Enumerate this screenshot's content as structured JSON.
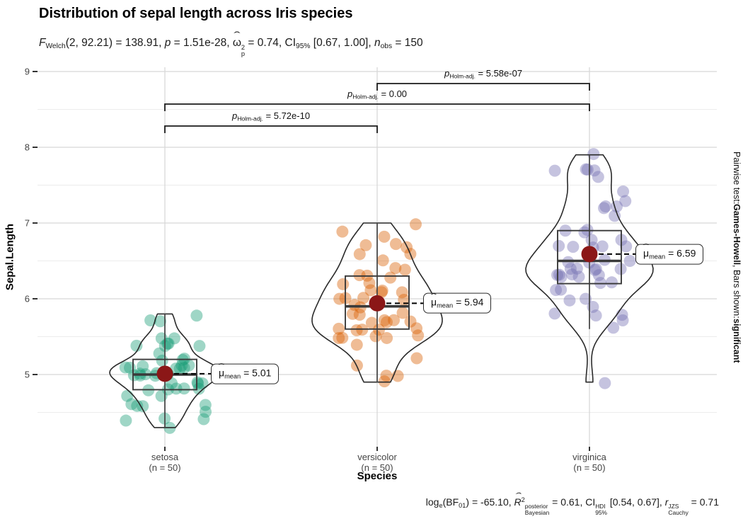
{
  "chart_data": {
    "type": "violin-box-scatter",
    "title": "Distribution of sepal length across Iris species",
    "subtitle_tokens": [
      [
        "i",
        "F"
      ],
      [
        "sub",
        "Welch"
      ],
      [
        "t",
        "(2, 92.21) = 138.91, "
      ],
      [
        "i",
        "p"
      ],
      [
        "t",
        " = 1.51e-28, "
      ],
      [
        "hat",
        "ω"
      ],
      [
        "ss",
        "2",
        "p"
      ],
      [
        "t",
        " = 0.74, CI"
      ],
      [
        "sub",
        "95%"
      ],
      [
        "t",
        " [0.67, 1.00], "
      ],
      [
        "i",
        "n"
      ],
      [
        "sub",
        "obs"
      ],
      [
        "t",
        " = 150"
      ]
    ],
    "caption_tokens": [
      [
        "t",
        "log"
      ],
      [
        "sub",
        "e"
      ],
      [
        "t",
        "(BF"
      ],
      [
        "sub",
        "01"
      ],
      [
        "t",
        ") = -65.10, "
      ],
      [
        "hati",
        "R"
      ],
      [
        "sup",
        "2"
      ],
      [
        "ss",
        "posterior",
        "Bayesian"
      ],
      [
        "t",
        " = 0.61, CI"
      ],
      [
        "ss",
        "HDI",
        "95%"
      ],
      [
        "t",
        " [0.54, 0.67], "
      ],
      [
        "i",
        "r"
      ],
      [
        "ss",
        "JZS",
        "Cauchy"
      ],
      [
        "t",
        " = 0.71"
      ]
    ],
    "right_note_tokens": [
      [
        "t",
        "Pairwise test: "
      ],
      [
        "b",
        "Games-Howell"
      ],
      [
        "t",
        ", Bars shown: "
      ],
      [
        "b",
        "significant"
      ]
    ],
    "xlabel": "Species",
    "ylabel": "Sepal.Length",
    "y_major_ticks": [
      9,
      8,
      7,
      6,
      5
    ],
    "y_minor_ticks": [
      8.5,
      7.5,
      6.5,
      5.5,
      4.5
    ],
    "ylim": [
      4.05,
      9.07
    ],
    "grid": true,
    "legend_position": "none",
    "mean_point_color": "#8B1717",
    "groups": [
      {
        "name": "setosa",
        "axis_label": "setosa",
        "n_label": "(n = 50)",
        "color": "#1B9E77",
        "mean": 5.01,
        "mean_label_tokens": [
          [
            "hat",
            "μ"
          ],
          [
            "sub",
            "mean"
          ],
          [
            "t",
            " = 5.01"
          ]
        ],
        "box": {
          "q1": 4.8,
          "median": 5.0,
          "q3": 5.2,
          "whisker_low": 4.3,
          "whisker_high": 5.8
        },
        "values": [
          5.1,
          4.9,
          4.7,
          4.6,
          5.0,
          5.4,
          4.6,
          5.0,
          4.4,
          4.9,
          5.4,
          4.8,
          4.8,
          4.3,
          5.8,
          5.7,
          5.4,
          5.1,
          5.7,
          5.1,
          5.4,
          5.1,
          4.6,
          5.1,
          4.8,
          5.0,
          5.0,
          5.2,
          5.2,
          4.7,
          4.8,
          5.4,
          5.2,
          5.5,
          4.9,
          5.0,
          5.5,
          4.9,
          4.4,
          5.1,
          5.0,
          4.5,
          4.4,
          5.0,
          5.1,
          4.8,
          5.1,
          4.6,
          5.3,
          5.0
        ]
      },
      {
        "name": "versicolor",
        "axis_label": "versicolor",
        "n_label": "(n = 50)",
        "color": "#D95F02",
        "mean": 5.94,
        "mean_label_tokens": [
          [
            "hat",
            "μ"
          ],
          [
            "sub",
            "mean"
          ],
          [
            "t",
            " = 5.94"
          ]
        ],
        "box": {
          "q1": 5.6,
          "median": 5.9,
          "q3": 6.3,
          "whisker_low": 4.9,
          "whisker_high": 7.0
        },
        "values": [
          7.0,
          6.4,
          6.9,
          5.5,
          6.5,
          5.7,
          6.3,
          4.9,
          6.6,
          5.2,
          5.0,
          5.9,
          6.0,
          6.1,
          5.6,
          6.7,
          5.6,
          5.8,
          6.2,
          5.6,
          5.9,
          6.1,
          6.3,
          6.1,
          6.4,
          6.6,
          6.8,
          6.7,
          6.0,
          5.7,
          5.5,
          5.5,
          5.8,
          6.0,
          5.4,
          6.0,
          6.7,
          6.3,
          5.6,
          5.5,
          5.5,
          6.1,
          5.8,
          5.0,
          5.6,
          5.7,
          5.7,
          6.2,
          5.1,
          5.7
        ]
      },
      {
        "name": "virginica",
        "axis_label": "virginica",
        "n_label": "(n = 50)",
        "color": "#7570B3",
        "mean": 6.59,
        "mean_label_tokens": [
          [
            "hat",
            "μ"
          ],
          [
            "sub",
            "mean"
          ],
          [
            "t",
            " = 6.59"
          ]
        ],
        "box": {
          "q1": 6.2,
          "median": 6.5,
          "q3": 6.9,
          "whisker_low": 5.6,
          "whisker_high": 7.9
        },
        "values": [
          6.3,
          5.8,
          7.1,
          6.3,
          6.5,
          7.6,
          4.9,
          7.3,
          6.7,
          7.2,
          6.5,
          6.4,
          6.8,
          5.7,
          5.8,
          6.4,
          6.5,
          7.7,
          7.7,
          6.0,
          6.9,
          5.6,
          7.7,
          6.3,
          6.7,
          7.2,
          6.2,
          6.1,
          6.4,
          7.2,
          7.4,
          7.9,
          6.4,
          6.3,
          6.1,
          7.7,
          6.3,
          6.4,
          6.0,
          6.9,
          6.7,
          6.9,
          5.8,
          6.8,
          6.7,
          6.7,
          6.3,
          6.5,
          6.2,
          5.9
        ]
      }
    ],
    "comparisons": [
      {
        "group1": "setosa",
        "group2": "versicolor",
        "level": 3,
        "label_tokens": [
          [
            "i",
            "p"
          ],
          [
            "sub",
            "Holm-adj."
          ],
          [
            "t",
            " = 5.72e-10"
          ]
        ]
      },
      {
        "group1": "setosa",
        "group2": "virginica",
        "level": 2,
        "label_tokens": [
          [
            "i",
            "p"
          ],
          [
            "sub",
            "Holm-adj."
          ],
          [
            "t",
            " = 0.00"
          ]
        ]
      },
      {
        "group1": "versicolor",
        "group2": "virginica",
        "level": 1,
        "label_tokens": [
          [
            "i",
            "p"
          ],
          [
            "sub",
            "Holm-adj."
          ],
          [
            "t",
            " = 5.58e-07"
          ]
        ]
      }
    ]
  }
}
